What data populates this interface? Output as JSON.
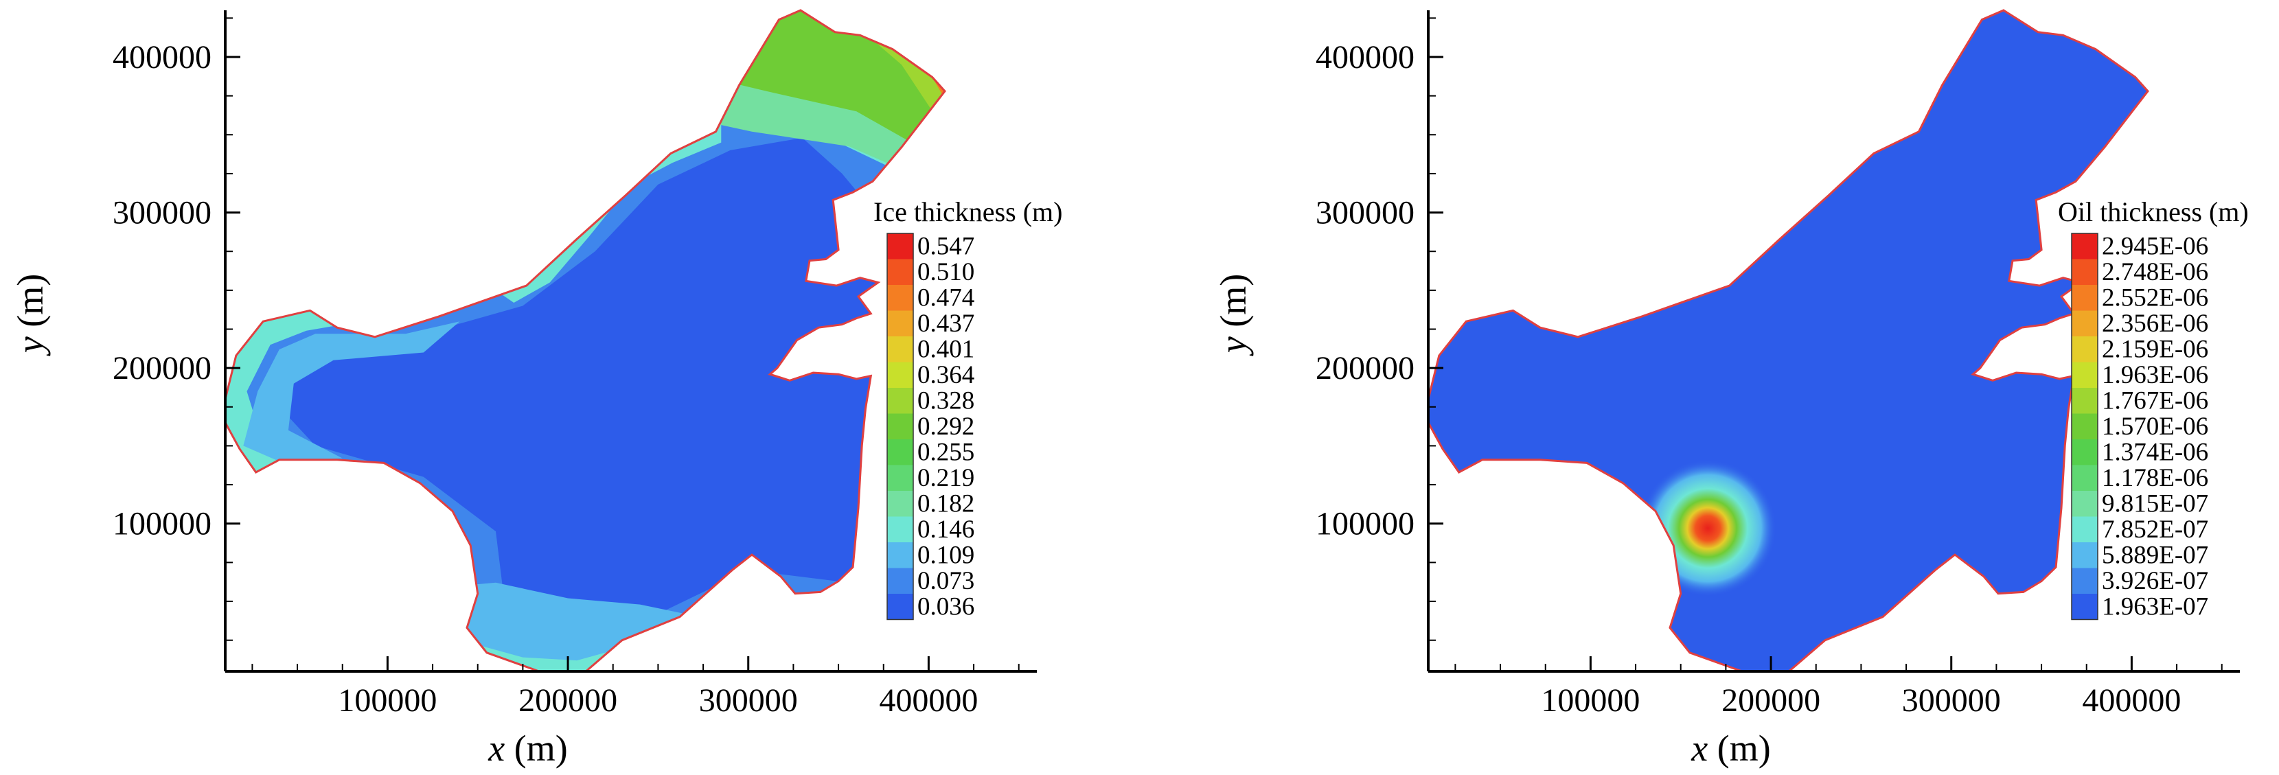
{
  "chart_data": [
    {
      "type": "heatmap",
      "name": "ice",
      "xlabel_var": "x",
      "xlabel_unit": " (m)",
      "ylabel_var": "y",
      "ylabel_unit": " (m)",
      "xlim": [
        10000,
        460000
      ],
      "ylim": [
        5000,
        430000
      ],
      "x_ticks": [
        100000,
        200000,
        300000,
        400000
      ],
      "y_ticks": [
        100000,
        200000,
        300000,
        400000
      ],
      "x_tick_labels": [
        "100000",
        "200000",
        "300000",
        "400000"
      ],
      "y_tick_labels": [
        "100000",
        "200000",
        "300000",
        "400000"
      ],
      "legend": {
        "title": "Ice thickness (m)",
        "placement": "right",
        "levels": [
          "0.547",
          "0.510",
          "0.474",
          "0.437",
          "0.401",
          "0.364",
          "0.328",
          "0.292",
          "0.255",
          "0.219",
          "0.182",
          "0.146",
          "0.109",
          "0.073",
          "0.036"
        ],
        "colors": [
          "#e8201c",
          "#f2541f",
          "#f47e22",
          "#f0a726",
          "#e4cd2a",
          "#c8e02b",
          "#9ed631",
          "#6fcc36",
          "#55d04d",
          "#5fd872",
          "#74e0a0",
          "#6ee6d4",
          "#57b9ee",
          "#3f86ec",
          "#2d5cea"
        ]
      },
      "field_features": [
        {
          "x": 360000,
          "y": 380000,
          "value": 0.364
        },
        {
          "x": 40000,
          "y": 180000,
          "value": 0.109
        },
        {
          "x": 190000,
          "y": 30000,
          "value": 0.109
        },
        {
          "x": 200000,
          "y": 200000,
          "value": 0.036
        }
      ]
    },
    {
      "type": "heatmap",
      "name": "oil",
      "xlabel_var": "x",
      "xlabel_unit": " (m)",
      "ylabel_var": "y",
      "ylabel_unit": " (m)",
      "xlim": [
        10000,
        460000
      ],
      "ylim": [
        5000,
        430000
      ],
      "x_ticks": [
        100000,
        200000,
        300000,
        400000
      ],
      "y_ticks": [
        100000,
        200000,
        300000,
        400000
      ],
      "x_tick_labels": [
        "100000",
        "200000",
        "300000",
        "400000"
      ],
      "y_tick_labels": [
        "100000",
        "200000",
        "300000",
        "400000"
      ],
      "legend": {
        "title": "Oil thickness (m)",
        "placement": "right",
        "levels": [
          "2.945E-06",
          "2.748E-06",
          "2.552E-06",
          "2.356E-06",
          "2.159E-06",
          "1.963E-06",
          "1.767E-06",
          "1.570E-06",
          "1.374E-06",
          "1.178E-06",
          "9.815E-07",
          "7.852E-07",
          "5.889E-07",
          "3.926E-07",
          "1.963E-07"
        ],
        "colors": [
          "#e8201c",
          "#f2541f",
          "#f47e22",
          "#f0a726",
          "#e4cd2a",
          "#c8e02b",
          "#9ed631",
          "#6fcc36",
          "#55d04d",
          "#5fd872",
          "#74e0a0",
          "#6ee6d4",
          "#57b9ee",
          "#3f86ec",
          "#2d5cea"
        ]
      },
      "field_features": [
        {
          "x": 165000,
          "y": 97000,
          "value": 2.945e-06
        }
      ]
    }
  ]
}
